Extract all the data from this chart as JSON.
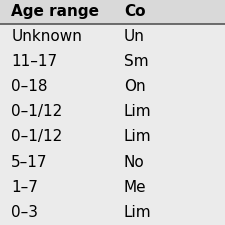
{
  "col1_header": "Age range",
  "col2_header": "Co",
  "rows": [
    [
      "Unknown",
      "Un"
    ],
    [
      "11–17",
      "Sm"
    ],
    [
      "0–18",
      "On"
    ],
    [
      "0–1/12",
      "Lim"
    ],
    [
      "0–1/12",
      "Lim"
    ],
    [
      "5–17",
      "No"
    ],
    [
      "1–7",
      "Me"
    ],
    [
      "0–3",
      "Lim"
    ]
  ],
  "header_bg": "#d9d9d9",
  "row_bg": "#ebebeb",
  "sep_color": "#555555",
  "header_fontsize": 11,
  "row_fontsize": 11
}
